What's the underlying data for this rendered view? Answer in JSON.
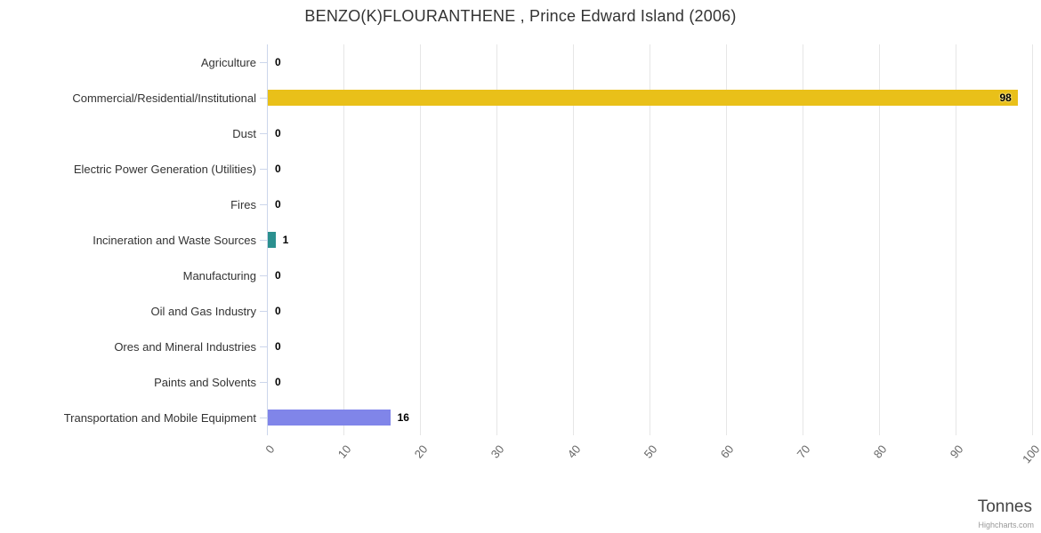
{
  "title": "BENZO(K)FLOURANTHENE , Prince Edward Island (2006)",
  "credit": "Highcharts.com",
  "chart_data": {
    "type": "bar",
    "title": "BENZO(K)FLOURANTHENE , Prince Edward Island (2006)",
    "categories": [
      "Agriculture",
      "Commercial/Residential/Institutional",
      "Dust",
      "Electric Power Generation (Utilities)",
      "Fires",
      "Incineration and Waste Sources",
      "Manufacturing",
      "Oil and Gas Industry",
      "Ores and Mineral Industries",
      "Paints and Solvents",
      "Transportation and Mobile Equipment"
    ],
    "values": [
      0,
      98,
      0,
      0,
      0,
      1,
      0,
      0,
      0,
      0,
      16
    ],
    "colors": [
      "#cccccc",
      "#e9c019",
      "#cccccc",
      "#cccccc",
      "#cccccc",
      "#2b908f",
      "#cccccc",
      "#cccccc",
      "#cccccc",
      "#cccccc",
      "#8085e9"
    ],
    "xlabel": "Tonnes",
    "xlim": [
      0,
      100
    ],
    "tick_interval": 10,
    "tick_labels": [
      "0",
      "10",
      "20",
      "30",
      "40",
      "50",
      "60",
      "70",
      "80",
      "90",
      "100"
    ],
    "grid": "on",
    "legend": "off"
  }
}
